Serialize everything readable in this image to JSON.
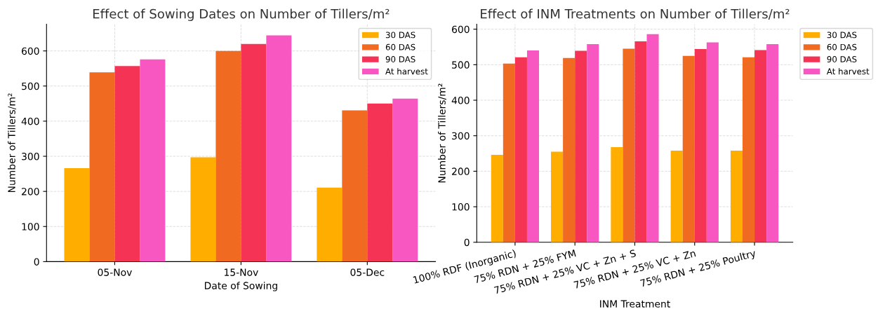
{
  "chart_data": [
    {
      "type": "bar",
      "title": "Effect of Sowing Dates on Number of Tillers/m²",
      "xlabel": "Date of Sowing",
      "ylabel": "Number of Tillers/m²",
      "categories": [
        "05-Nov",
        "15-Nov",
        "05-Dec"
      ],
      "series": [
        {
          "name": "30 DAS",
          "color": "#ffae00",
          "values": [
            266,
            297,
            211
          ]
        },
        {
          "name": "60 DAS",
          "color": "#f06a22",
          "values": [
            539,
            600,
            431
          ]
        },
        {
          "name": "90 DAS",
          "color": "#f43355",
          "values": [
            557,
            620,
            450
          ]
        },
        {
          "name": "At harvest",
          "color": "#f857c2",
          "values": [
            576,
            644,
            464
          ]
        }
      ],
      "ylim": [
        0,
        676
      ],
      "yticks": [
        0,
        100,
        200,
        300,
        400,
        500,
        600
      ],
      "grid": true,
      "legend": "top right"
    },
    {
      "type": "bar",
      "title": "Effect of INM Treatments on Number of Tillers/m²",
      "xlabel": "INM Treatment",
      "ylabel": "Number of Tillers/m²",
      "categories": [
        "100% RDF (Inorganic)",
        "75% RDN + 25% FYM",
        "75% RDN + 25% VC + Zn + S",
        "75% RDN + 25% VC + Zn",
        "75% RDN + 25% Poultry"
      ],
      "series": [
        {
          "name": "30 DAS",
          "color": "#ffae00",
          "values": [
            246,
            255,
            268,
            258,
            258
          ]
        },
        {
          "name": "60 DAS",
          "color": "#f06a22",
          "values": [
            503,
            519,
            545,
            525,
            521
          ]
        },
        {
          "name": "90 DAS",
          "color": "#f43355",
          "values": [
            521,
            539,
            566,
            544,
            541
          ]
        },
        {
          "name": "At harvest",
          "color": "#f857c2",
          "values": [
            540,
            558,
            586,
            563,
            558
          ]
        }
      ],
      "ylim": [
        0,
        614
      ],
      "yticks": [
        0,
        100,
        200,
        300,
        400,
        500,
        600
      ],
      "grid": true,
      "legend": "right"
    }
  ]
}
